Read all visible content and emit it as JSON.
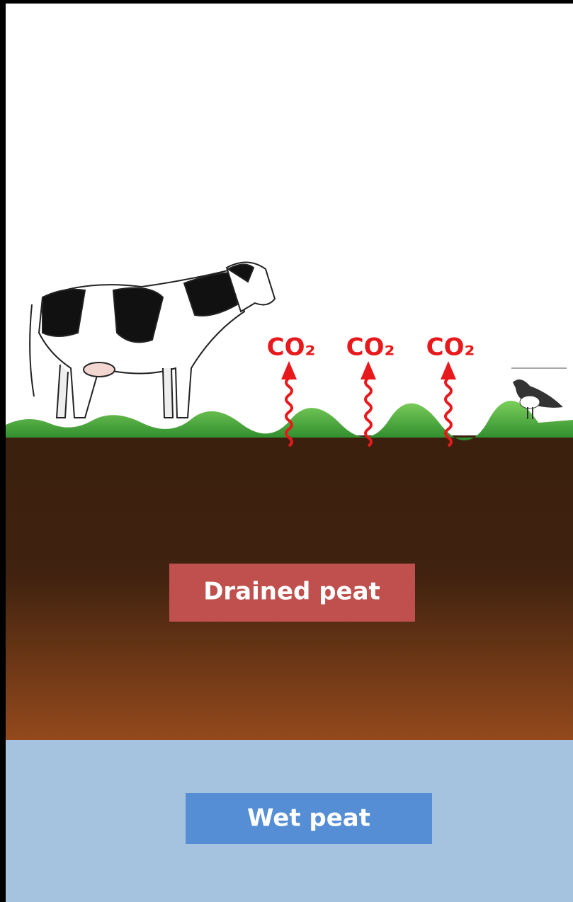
{
  "emissions": [
    {
      "label": "CO₂"
    },
    {
      "label": "CO₂"
    },
    {
      "label": "CO₂"
    }
  ],
  "layers": [
    {
      "label": "Drained peat"
    },
    {
      "label": "Wet peat"
    }
  ]
}
